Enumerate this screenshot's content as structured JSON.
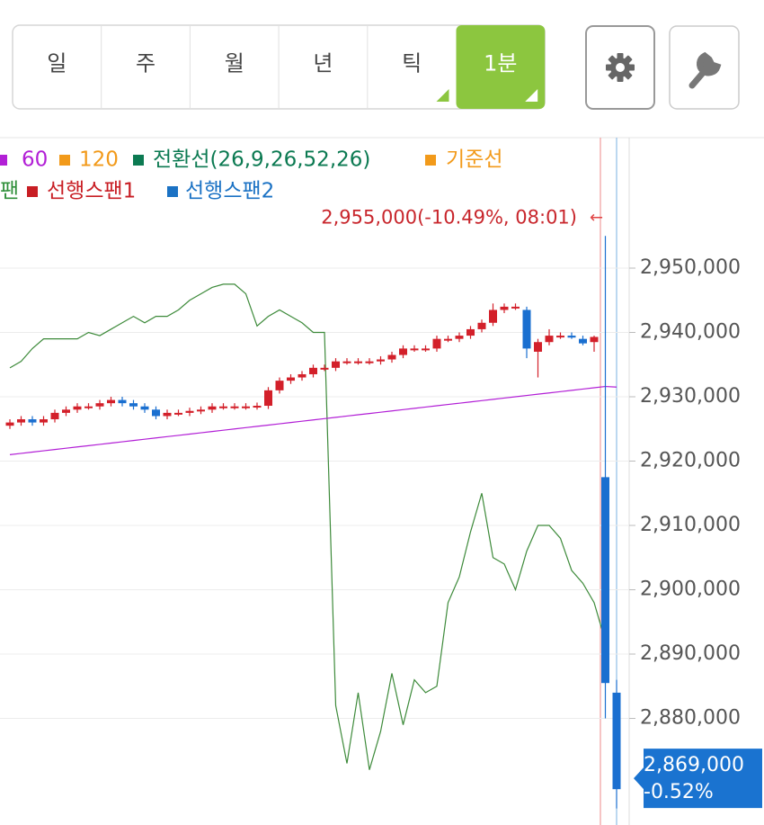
{
  "tabs": [
    "일",
    "주",
    "월",
    "년",
    "틱",
    "1분"
  ],
  "active_tab": 5,
  "legend": [
    [
      {
        "text": "60",
        "color": "#b21fd6"
      },
      {
        "text": "120",
        "color": "#f29a1a"
      },
      {
        "text": "전환선(26,9,26,52,26)",
        "color": "#0c7a52"
      },
      {
        "text": "기준선",
        "color": "#f29a1a"
      }
    ],
    [
      {
        "text": "팬",
        "color": "#2f8f3a"
      },
      {
        "text": "선행스팬1",
        "color": "#c81e24"
      },
      {
        "text": "선행스팬2",
        "color": "#1b72c4"
      }
    ]
  ],
  "chart_data": {
    "type": "candlestick",
    "ylim": [
      2863500,
      2970000
    ],
    "yticks": [
      {
        "value": 2950000,
        "label": "2,950,000"
      },
      {
        "value": 2940000,
        "label": "2,940,000"
      },
      {
        "value": 2930000,
        "label": "2,930,000"
      },
      {
        "value": 2920000,
        "label": "2,920,000"
      },
      {
        "value": 2910000,
        "label": "2,910,000"
      },
      {
        "value": 2900000,
        "label": "2,900,000"
      },
      {
        "value": 2890000,
        "label": "2,890,000"
      },
      {
        "value": 2880000,
        "label": "2,880,000"
      }
    ],
    "up_color": "#d3202a",
    "down_color": "#1a6fd0",
    "open": [
      2925500,
      2926000,
      2926500,
      2926000,
      2926500,
      2927500,
      2928000,
      2928500,
      2928500,
      2929000,
      2929500,
      2929000,
      2928500,
      2928000,
      2927000,
      2927500,
      2927500,
      2927800,
      2928000,
      2928500,
      2928500,
      2928500,
      2928500,
      2928600,
      2931000,
      2932500,
      2933000,
      2933500,
      2934500,
      2934500,
      2935500,
      2935500,
      2935500,
      2935500,
      2935800,
      2936500,
      2937500,
      2937500,
      2937500,
      2939000,
      2939000,
      2939500,
      2940500,
      2941500,
      2943500,
      2944000,
      2943500,
      2937000,
      2938500,
      2939500,
      2939500,
      2939000,
      2938500,
      2917500,
      2884000
    ],
    "high": [
      2926500,
      2927000,
      2927000,
      2927000,
      2928000,
      2928500,
      2929000,
      2929000,
      2929500,
      2930000,
      2930000,
      2929500,
      2929000,
      2928500,
      2928000,
      2928000,
      2928300,
      2928500,
      2929000,
      2929000,
      2929000,
      2929000,
      2929100,
      2931500,
      2933000,
      2933500,
      2934000,
      2935000,
      2935000,
      2936000,
      2936000,
      2936000,
      2936000,
      2936300,
      2937000,
      2938000,
      2938000,
      2938000,
      2939500,
      2939500,
      2940000,
      2941000,
      2942000,
      2944500,
      2944500,
      2944500,
      2944000,
      2939000,
      2940500,
      2940000,
      2940000,
      2939500,
      2939500,
      2955000,
      2886000
    ],
    "low": [
      2925000,
      2925500,
      2925500,
      2925500,
      2926000,
      2927000,
      2927500,
      2928000,
      2928000,
      2928500,
      2928500,
      2928000,
      2927500,
      2926500,
      2926500,
      2927000,
      2927000,
      2927300,
      2927500,
      2928000,
      2928000,
      2928000,
      2928000,
      2928100,
      2930500,
      2932000,
      2932500,
      2933000,
      2934000,
      2934000,
      2935000,
      2935000,
      2935000,
      2935000,
      2935300,
      2936000,
      2937000,
      2937000,
      2937000,
      2938500,
      2938500,
      2939000,
      2940000,
      2941000,
      2943000,
      2943500,
      2936000,
      2933000,
      2938000,
      2939000,
      2939000,
      2938000,
      2937000,
      2880000,
      2866000
    ],
    "close": [
      2926000,
      2926500,
      2926000,
      2926500,
      2927500,
      2928000,
      2928500,
      2928500,
      2929000,
      2929500,
      2929000,
      2928500,
      2928000,
      2927000,
      2927500,
      2927500,
      2927800,
      2928000,
      2928500,
      2928500,
      2928500,
      2928500,
      2928600,
      2931000,
      2932500,
      2933000,
      2933500,
      2934500,
      2934500,
      2935500,
      2935500,
      2935500,
      2935500,
      2935800,
      2936500,
      2937500,
      2937500,
      2937500,
      2939000,
      2939000,
      2939500,
      2940500,
      2941500,
      2943500,
      2944000,
      2944000,
      2937500,
      2938500,
      2939500,
      2939500,
      2939200,
      2938300,
      2939300,
      2885500,
      2869000
    ],
    "lines": [
      {
        "color": "#3d8a3a",
        "values": [
          2934500,
          2935500,
          2937500,
          2939000,
          2939000,
          2939000,
          2939000,
          2940000,
          2939500,
          2940500,
          2941500,
          2942500,
          2941500,
          2942500,
          2942500,
          2943500,
          2945000,
          2946000,
          2947000,
          2947500,
          2947500,
          2946000,
          2941000,
          2942500,
          2943500,
          2942500,
          2941500,
          2940000,
          2940000,
          2882000,
          2873000,
          2884000,
          2872000,
          2878000,
          2887000,
          2879000,
          2886000,
          2884000,
          2885000,
          2898000,
          2902000,
          2909000,
          2915000,
          2905000,
          2904000,
          2900000,
          2906000,
          2910000,
          2910000,
          2908000,
          2903000,
          2901000,
          2898000,
          2892000,
          null
        ]
      },
      {
        "color": "#b21fd6",
        "values": [
          2921000,
          2921200,
          2921400,
          2921600,
          2921800,
          2922000,
          2922200,
          2922400,
          2922600,
          2922800,
          2923000,
          2923200,
          2923400,
          2923600,
          2923800,
          2924000,
          2924200,
          2924400,
          2924600,
          2924800,
          2925000,
          2925200,
          2925400,
          2925600,
          2925800,
          2926000,
          2926200,
          2926400,
          2926600,
          2926800,
          2927000,
          2927200,
          2927400,
          2927600,
          2927800,
          2928000,
          2928200,
          2928400,
          2928600,
          2928800,
          2929000,
          2929200,
          2929400,
          2929600,
          2929800,
          2930000,
          2930200,
          2930400,
          2930600,
          2930800,
          2931000,
          2931200,
          2931400,
          2931600,
          2931500
        ]
      }
    ],
    "price_marker": {
      "value": 2955000,
      "label": "2,955,000(-10.49%, 08:01)",
      "arrow": "←"
    },
    "current_price": {
      "value": 2869000,
      "label": "2,869,000",
      "change": "-0.52%"
    }
  }
}
